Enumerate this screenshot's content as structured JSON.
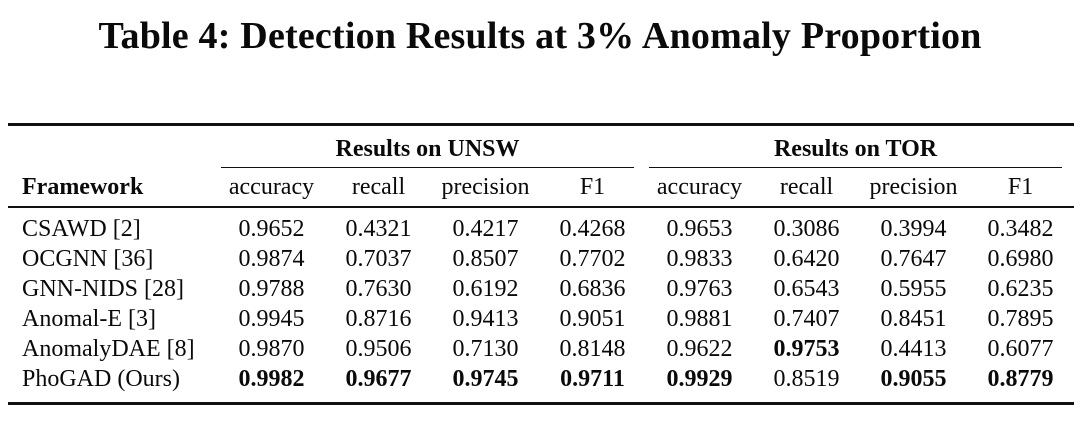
{
  "colors": {
    "background": "#ffffff",
    "text": "#0a0a0a",
    "rule": "#111111"
  },
  "caption": "Table 4: Detection Results at 3% Anomaly Proportion",
  "table": {
    "framework_header": "Framework",
    "groups": [
      {
        "label": "Results on UNSW"
      },
      {
        "label": "Results on TOR"
      }
    ],
    "sub_headers": [
      "accuracy",
      "recall",
      "precision",
      "F1",
      "accuracy",
      "recall",
      "precision",
      "F1"
    ],
    "rows": [
      {
        "framework": "CSAWD [2]",
        "values": [
          "0.9652",
          "0.4321",
          "0.4217",
          "0.4268",
          "0.9653",
          "0.3086",
          "0.3994",
          "0.3482"
        ],
        "bold": []
      },
      {
        "framework": "OCGNN [36]",
        "values": [
          "0.9874",
          "0.7037",
          "0.8507",
          "0.7702",
          "0.9833",
          "0.6420",
          "0.7647",
          "0.6980"
        ],
        "bold": []
      },
      {
        "framework": "GNN-NIDS [28]",
        "values": [
          "0.9788",
          "0.7630",
          "0.6192",
          "0.6836",
          "0.9763",
          "0.6543",
          "0.5955",
          "0.6235"
        ],
        "bold": []
      },
      {
        "framework": "Anomal-E [3]",
        "values": [
          "0.9945",
          "0.8716",
          "0.9413",
          "0.9051",
          "0.9881",
          "0.7407",
          "0.8451",
          "0.7895"
        ],
        "bold": []
      },
      {
        "framework": "AnomalyDAE [8]",
        "values": [
          "0.9870",
          "0.9506",
          "0.7130",
          "0.8148",
          "0.9622",
          "0.9753",
          "0.4413",
          "0.6077"
        ],
        "bold": [
          5
        ]
      },
      {
        "framework": "PhoGAD (Ours)",
        "values": [
          "0.9982",
          "0.9677",
          "0.9745",
          "0.9711",
          "0.9929",
          "0.8519",
          "0.9055",
          "0.8779"
        ],
        "bold": [
          0,
          1,
          2,
          3,
          4,
          6,
          7
        ]
      }
    ]
  }
}
